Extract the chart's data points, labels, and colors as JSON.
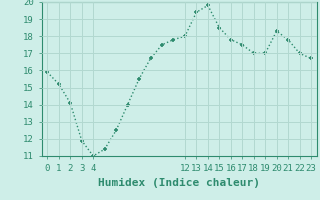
{
  "x": [
    0,
    1,
    2,
    3,
    4,
    5,
    6,
    7,
    8,
    9,
    10,
    11,
    12,
    13,
    14,
    15,
    16,
    17,
    18,
    19,
    20,
    21,
    22,
    23
  ],
  "y": [
    15.9,
    15.2,
    14.1,
    11.9,
    11.0,
    11.4,
    12.5,
    14.0,
    15.5,
    16.7,
    17.5,
    17.8,
    18.0,
    19.4,
    19.8,
    18.5,
    17.8,
    17.5,
    17.0,
    17.0,
    18.3,
    17.8,
    17.0,
    16.7
  ],
  "line_color": "#2e8b6e",
  "marker_color": "#2e8b6e",
  "bg_color": "#ceeee8",
  "grid_color": "#b2d8d0",
  "xlabel": "Humidex (Indice chaleur)",
  "ylim": [
    11,
    20
  ],
  "xlim": [
    -0.5,
    23.5
  ],
  "yticks": [
    11,
    12,
    13,
    14,
    15,
    16,
    17,
    18,
    19,
    20
  ],
  "xtick_positions": [
    0,
    1,
    2,
    3,
    4,
    12,
    13,
    14,
    15,
    16,
    17,
    18,
    19,
    20,
    21,
    22,
    23
  ],
  "xtick_labels": [
    "0",
    "1",
    "2",
    "3",
    "4",
    "12",
    "13",
    "14",
    "15",
    "16",
    "17",
    "18",
    "19",
    "20",
    "21",
    "22",
    "23"
  ],
  "xlabel_fontsize": 8,
  "tick_fontsize": 6.5,
  "line_width": 1.0,
  "marker_size": 2.5
}
